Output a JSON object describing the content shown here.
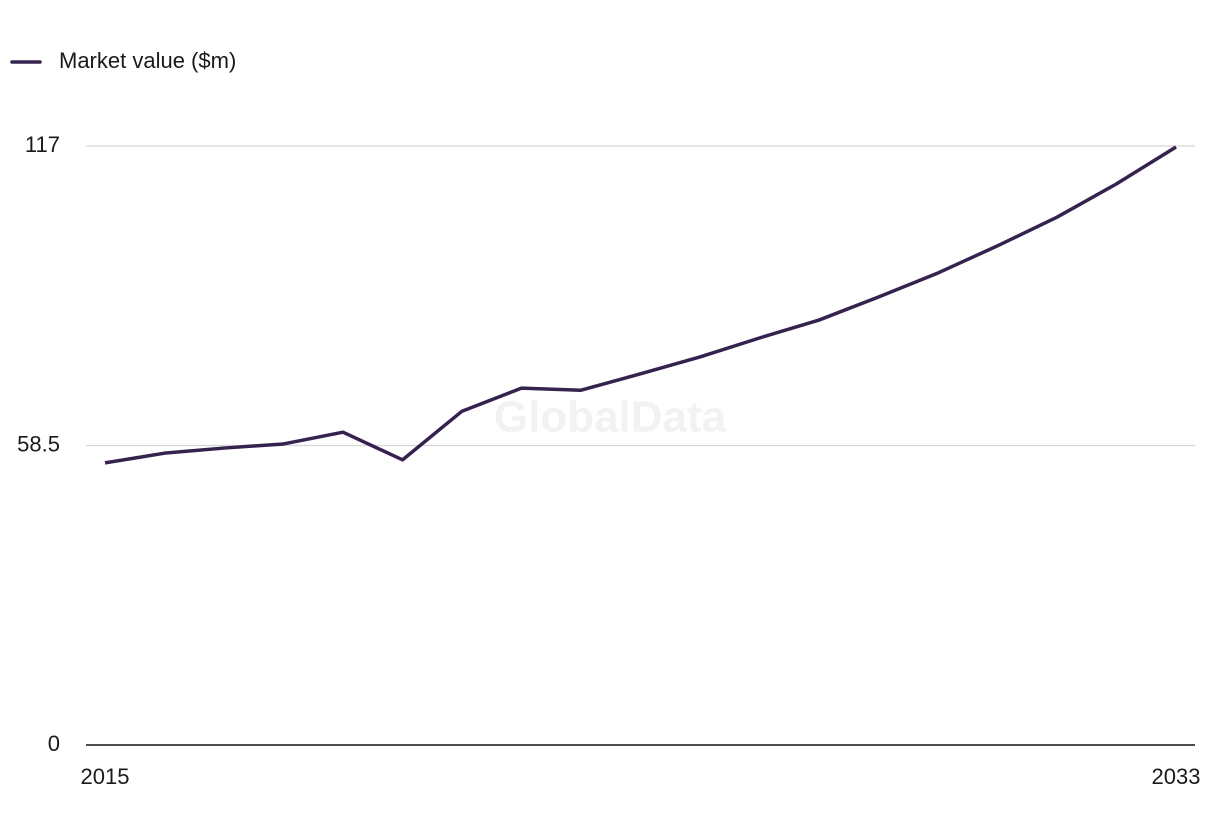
{
  "chart_data": {
    "type": "line",
    "watermark": "GlobalData",
    "x": [
      2015,
      2016,
      2017,
      2018,
      2019,
      2020,
      2021,
      2022,
      2023,
      2024,
      2025,
      2026,
      2027,
      2028,
      2029,
      2030,
      2031,
      2032,
      2033
    ],
    "series": [
      {
        "name": "Market value ($m)",
        "color": "#35224f",
        "values": [
          55.1,
          57.0,
          58.0,
          58.8,
          61.1,
          55.7,
          65.2,
          69.7,
          69.3,
          72.5,
          75.8,
          79.5,
          83.0,
          87.5,
          92.2,
          97.5,
          103.1,
          109.6,
          116.8
        ]
      }
    ],
    "xlim": [
      2015,
      2033
    ],
    "xticks": [
      2015,
      2033
    ],
    "ylim": [
      0,
      117
    ],
    "yticks": [
      0,
      58.5,
      117
    ],
    "grid": true,
    "legend": "top-left"
  }
}
